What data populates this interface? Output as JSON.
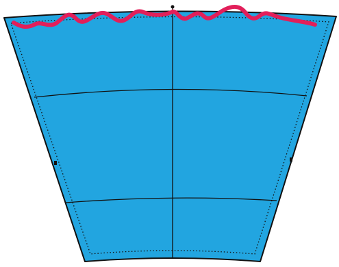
{
  "pattern_piece": {
    "fill_color": "#22a5e0",
    "outline_color": "#111111",
    "seam_color": "#111111",
    "stitch_line_color": "#e21f5a",
    "grain_label": "",
    "text_block_upper": {
      "line1": "",
      "line2": "",
      "line3": "",
      "line4": ""
    },
    "text_block_mid": {
      "line1": "",
      "line2": ""
    },
    "text_block_lower": {
      "line1": ""
    }
  }
}
